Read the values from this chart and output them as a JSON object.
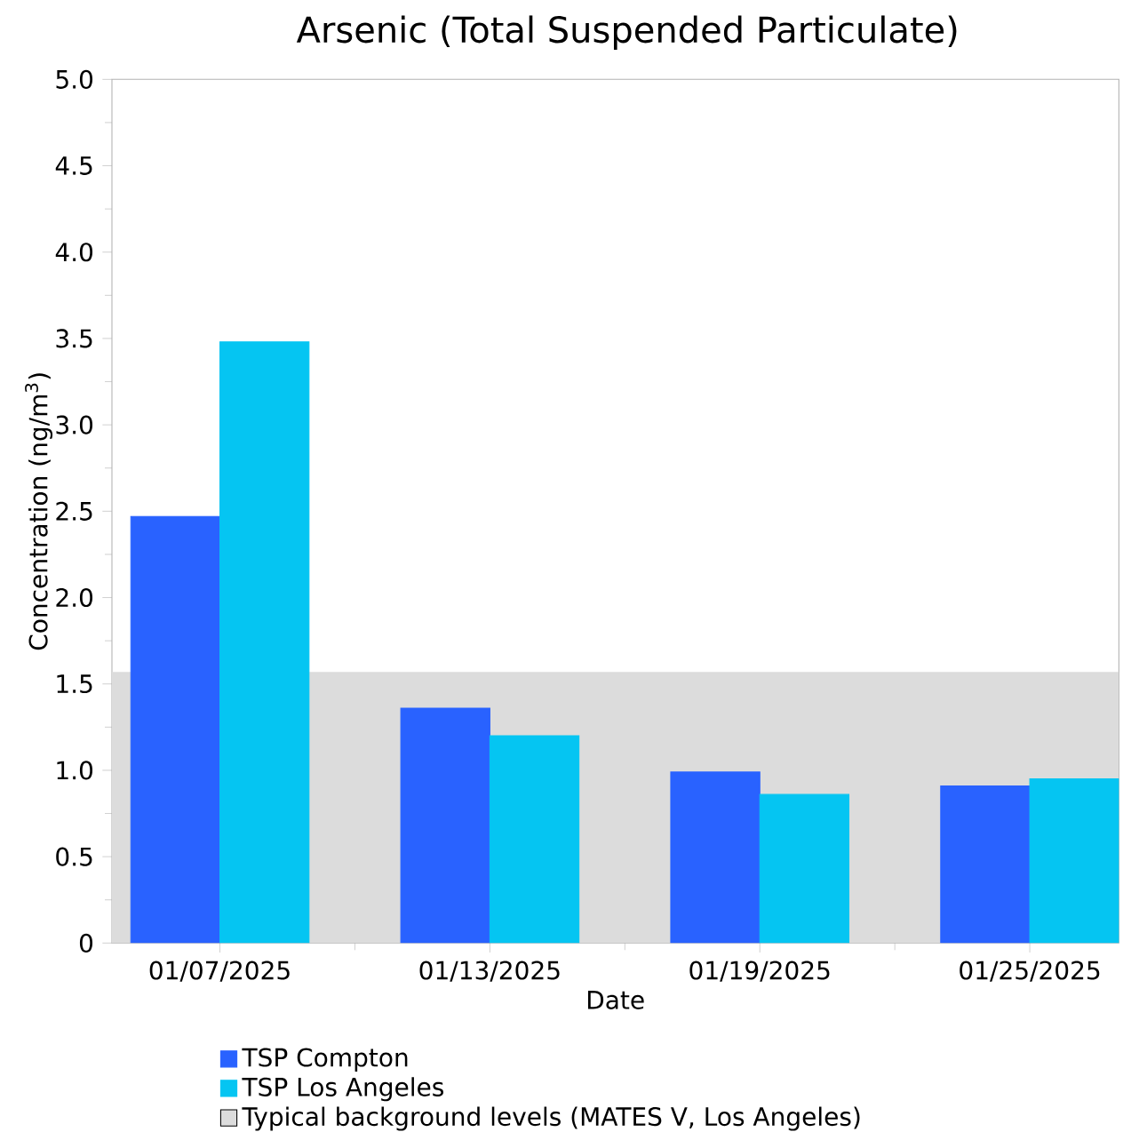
{
  "chart_data": {
    "type": "bar",
    "title": "Arsenic (Total Suspended Particulate)",
    "xlabel": "Date",
    "ylabel": "Concentration (ng/m$^{3}$)",
    "categories": [
      "01/07/2025",
      "01/13/2025",
      "01/19/2025",
      "01/25/2025"
    ],
    "series": [
      {
        "name": "TSP Compton",
        "color": "#2962ff",
        "values": [
          2.47,
          1.36,
          0.99,
          0.91
        ]
      },
      {
        "name": "TSP Los Angeles",
        "color": "#05c5f2",
        "values": [
          3.48,
          1.2,
          0.86,
          0.95
        ]
      }
    ],
    "ylim": [
      0,
      5
    ],
    "yticks": [
      0,
      0.5,
      {
        "value": 1,
        "label": "1.0"
      },
      1.5,
      {
        "value": 2,
        "label": "2.0"
      },
      2.5,
      {
        "value": 3,
        "label": "3.0"
      },
      3.5,
      {
        "value": 4,
        "label": "4.0"
      },
      4.5,
      {
        "value": 5,
        "label": "5.0"
      }
    ],
    "bands": [
      {
        "axis": "y",
        "from": 0,
        "to": 1.57,
        "label": "Typical background levels (MATES V, Los Angeles)",
        "color": "#dcdcdc"
      }
    ],
    "legend": "bottom"
  }
}
